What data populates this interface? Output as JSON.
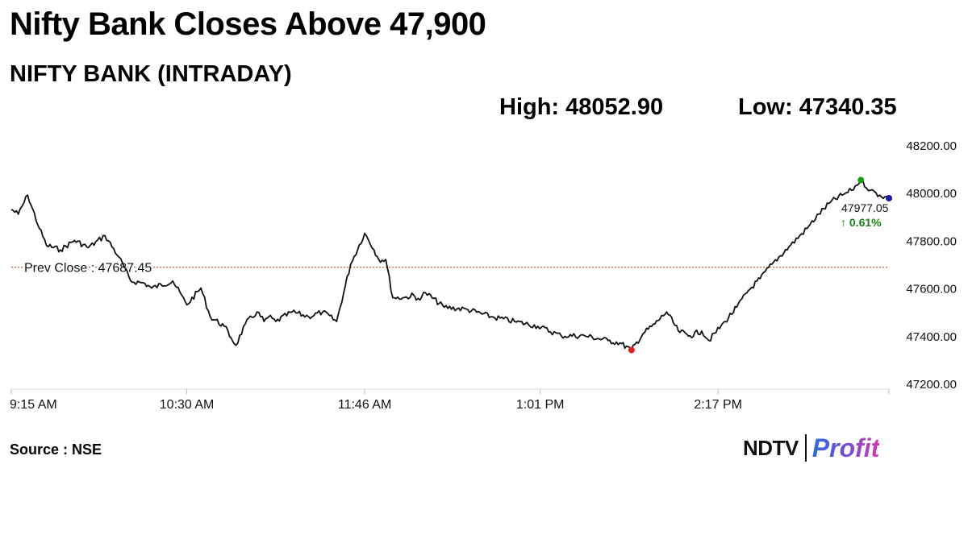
{
  "headline": "Nifty Bank Closes Above 47,900",
  "subtitle": "NIFTY BANK (INTRADAY)",
  "stats": {
    "high": "High: 48052.90",
    "low": "Low: 47340.35"
  },
  "source": "Source : NSE",
  "logo": {
    "brand": "NDTV",
    "product": "Profit"
  },
  "colors": {
    "line": "#111111",
    "prev_close_line": "#c0392b",
    "high_marker": "#1a9e1a",
    "low_marker": "#e02020",
    "last_marker": "#1a1aa8",
    "change_text": "#1a7f1a"
  },
  "chart_data": {
    "type": "line",
    "series": [
      {
        "x": [
          "9:15",
          "9:18",
          "9:22",
          "9:27",
          "9:30",
          "9:36",
          "9:42",
          "9:48",
          "9:55",
          "10:01",
          "10:06",
          "10:12",
          "10:15",
          "10:24",
          "10:30",
          "10:36",
          "10:40",
          "10:46",
          "10:49",
          "10:51",
          "10:55",
          "11:00",
          "11:03",
          "11:05",
          "11:08",
          "11:15",
          "11:22",
          "11:28",
          "11:34",
          "11:40",
          "11:46",
          "11:50",
          "11:52",
          "11:55",
          "11:58",
          "12:03",
          "12:07",
          "12:08",
          "12:12",
          "12:20",
          "12:30",
          "12:40",
          "12:50",
          "13:00",
          "13:10",
          "13:20",
          "13:30",
          "13:35",
          "13:40",
          "13:45",
          "13:50",
          "13:55",
          "14:00",
          "14:05",
          "14:10",
          "14:13",
          "14:20",
          "14:25",
          "14:30",
          "14:35",
          "14:40",
          "14:48",
          "14:55",
          "15:00",
          "15:05",
          "15:10",
          "15:14",
          "15:18",
          "15:22",
          "15:26",
          "15:30"
        ],
        "values": [
          47930,
          47910,
          47990,
          47850,
          47780,
          47760,
          47800,
          47770,
          47820,
          47730,
          47630,
          47620,
          47600,
          47630,
          47530,
          47600,
          47480,
          47440,
          47390,
          47360,
          47450,
          47500,
          47460,
          47480,
          47460,
          47500,
          47480,
          47500,
          47460,
          47700,
          47830,
          47760,
          47720,
          47720,
          47560,
          47560,
          47570,
          47550,
          47580,
          47520,
          47510,
          47480,
          47460,
          47440,
          47400,
          47400,
          47380,
          47370,
          47340,
          47410,
          47450,
          47500,
          47420,
          47400,
          47420,
          47380,
          47460,
          47520,
          47590,
          47640,
          47700,
          47780,
          47850,
          47910,
          47960,
          47990,
          48010,
          48052.9,
          48010,
          47990,
          47977.05
        ]
      }
    ],
    "prev_close": {
      "label": "Prev Close : 47687.45",
      "value": 47687.45
    },
    "last_value": {
      "label": "47977.05",
      "change": "↑ 0.61%"
    },
    "high_point": {
      "x": "15:18",
      "value": 48052.9
    },
    "low_point": {
      "x": "13:40",
      "value": 47340.35
    },
    "xticks": [
      {
        "t": "9:15",
        "label": "9:15 AM"
      },
      {
        "t": "10:30",
        "label": "10:30 AM"
      },
      {
        "t": "11:46",
        "label": "11:46 AM"
      },
      {
        "t": "13:01",
        "label": "1:01 PM"
      },
      {
        "t": "14:17",
        "label": "2:17 PM"
      },
      {
        "t": "15:30",
        "label": ""
      }
    ],
    "yticks": [
      {
        "value": 47200,
        "label": "47200.00"
      },
      {
        "value": 47400,
        "label": "47400.00"
      },
      {
        "value": 47600,
        "label": "47600.00"
      },
      {
        "value": 47800,
        "label": "47800.00"
      },
      {
        "value": 48000,
        "label": "48000.00"
      },
      {
        "value": 48200,
        "label": "48200.00"
      }
    ],
    "xlim": [
      "9:15",
      "15:30"
    ],
    "ylim": [
      47200,
      48200
    ],
    "grid": false,
    "axis_side": "right"
  }
}
